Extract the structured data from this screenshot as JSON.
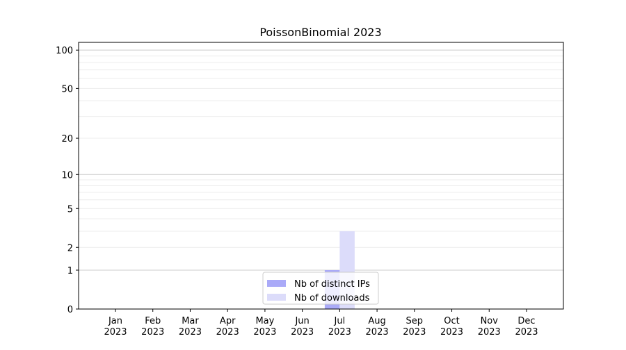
{
  "chart_data": {
    "type": "bar",
    "title": "PoissonBinomial 2023",
    "xlabel": "",
    "ylabel": "",
    "y_scale": "log(1+y)",
    "ylim": [
      0,
      115
    ],
    "yticks": [
      0,
      1,
      2,
      5,
      10,
      20,
      50,
      100
    ],
    "grid": true,
    "legend_position": "lower-center",
    "categories": [
      "Jan\n2023",
      "Feb\n2023",
      "Mar\n2023",
      "Apr\n2023",
      "May\n2023",
      "Jun\n2023",
      "Jul\n2023",
      "Aug\n2023",
      "Sep\n2023",
      "Oct\n2023",
      "Nov\n2023",
      "Dec\n2023"
    ],
    "series": [
      {
        "name": "Nb of distinct IPs",
        "color": "#aaaaf8",
        "values": [
          0,
          0,
          0,
          0,
          0,
          0,
          1,
          0,
          0,
          0,
          0,
          0
        ]
      },
      {
        "name": "Nb of downloads",
        "color": "#dcdcfa",
        "values": [
          0,
          0,
          0,
          0,
          0,
          0,
          3,
          0,
          0,
          0,
          0,
          0
        ]
      }
    ]
  }
}
